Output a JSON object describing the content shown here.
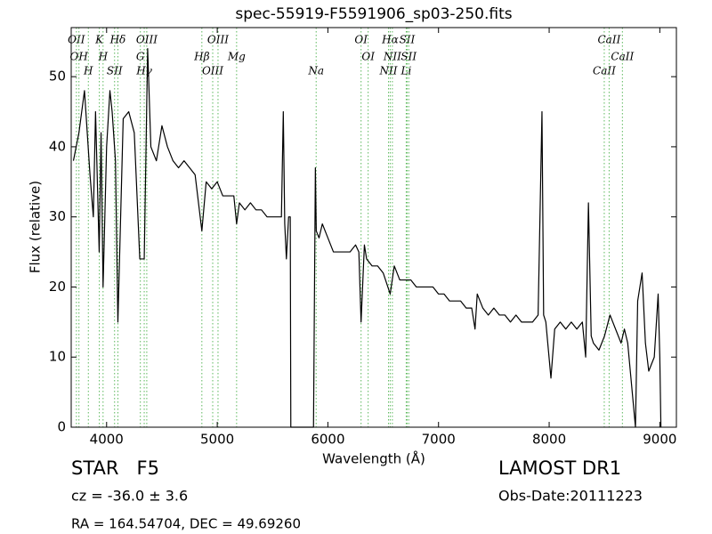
{
  "chart_data": {
    "type": "line",
    "title": "spec-55919-F5591906_sp03-250.fits",
    "x_label": "Wavelength (Å)",
    "y_label": "Flux (relative)",
    "xlim": [
      3680,
      9150
    ],
    "ylim": [
      0,
      57
    ],
    "xticks": [
      4000,
      5000,
      6000,
      7000,
      8000,
      9000
    ],
    "yticks": [
      0,
      10,
      20,
      30,
      40,
      50
    ],
    "x": [
      3700,
      3750,
      3800,
      3850,
      3880,
      3900,
      3933,
      3950,
      3968,
      4000,
      4030,
      4050,
      4080,
      4102,
      4150,
      4200,
      4250,
      4300,
      4340,
      4371,
      4400,
      4450,
      4500,
      4550,
      4600,
      4650,
      4700,
      4750,
      4800,
      4861,
      4900,
      4950,
      5000,
      5050,
      5100,
      5150,
      5175,
      5200,
      5250,
      5300,
      5350,
      5400,
      5450,
      5500,
      5550,
      5580,
      5597,
      5610,
      5625,
      5645,
      5660,
      5665,
      5870,
      5887,
      5895,
      5920,
      5950,
      6000,
      6050,
      6100,
      6150,
      6200,
      6250,
      6280,
      6300,
      6330,
      6350,
      6400,
      6450,
      6500,
      6563,
      6600,
      6650,
      6700,
      6750,
      6800,
      6850,
      6900,
      6950,
      7000,
      7050,
      7100,
      7150,
      7200,
      7250,
      7300,
      7330,
      7350,
      7400,
      7450,
      7500,
      7550,
      7600,
      7650,
      7700,
      7750,
      7800,
      7850,
      7900,
      7935,
      7950,
      7970,
      8016,
      8050,
      8100,
      8150,
      8200,
      8250,
      8300,
      8330,
      8355,
      8380,
      8400,
      8450,
      8500,
      8550,
      8600,
      8650,
      8680,
      8710,
      8780,
      8800,
      8840,
      8870,
      8900,
      8950,
      8985,
      9000,
      9010
    ],
    "series": [
      {
        "name": "Flux",
        "color": "#000000",
        "values": [
          38,
          42,
          48,
          36,
          30,
          45,
          25,
          42,
          20,
          40,
          48,
          45,
          38,
          15,
          44,
          45,
          42,
          24,
          24,
          54,
          40,
          38,
          43,
          40,
          38,
          37,
          38,
          37,
          36,
          28,
          35,
          34,
          35,
          33,
          33,
          33,
          29,
          32,
          31,
          32,
          31,
          31,
          30,
          30,
          30,
          30,
          45,
          29,
          24,
          30,
          30,
          0,
          0,
          37,
          28,
          27,
          29,
          27,
          25,
          25,
          25,
          25,
          26,
          25,
          15,
          26,
          24,
          23,
          23,
          22,
          19,
          23,
          21,
          21,
          21,
          20,
          20,
          20,
          20,
          19,
          19,
          18,
          18,
          18,
          17,
          17,
          14,
          19,
          17,
          16,
          17,
          16,
          16,
          15,
          16,
          15,
          15,
          15,
          16,
          45,
          16,
          15,
          7,
          14,
          15,
          14,
          15,
          14,
          15,
          10,
          32,
          13,
          12,
          11,
          13,
          16,
          14,
          12,
          14,
          12,
          0,
          18,
          22,
          12,
          8,
          10,
          19,
          10,
          0
        ]
      }
    ],
    "line_color": "#5cb85c",
    "spectral_lines": [
      {
        "label": "OII",
        "wavelength": 3727
      },
      {
        "label": "OH",
        "wavelength": 3750
      },
      {
        "label": "H",
        "wavelength": 3835
      },
      {
        "label": "K",
        "wavelength": 3934
      },
      {
        "label": "H",
        "wavelength": 3968
      },
      {
        "label": "SII",
        "wavelength": 4072
      },
      {
        "label": "Hδ",
        "wavelength": 4102
      },
      {
        "label": "G",
        "wavelength": 4305
      },
      {
        "label": "Hγ",
        "wavelength": 4340
      },
      {
        "label": "OIII",
        "wavelength": 4363
      },
      {
        "label": "Hβ",
        "wavelength": 4861
      },
      {
        "label": "OIII",
        "wavelength": 4959
      },
      {
        "label": "OIII",
        "wavelength": 5007
      },
      {
        "label": "Mg",
        "wavelength": 5175
      },
      {
        "label": "Na",
        "wavelength": 5894
      },
      {
        "label": "OI",
        "wavelength": 6300
      },
      {
        "label": "OI",
        "wavelength": 6364
      },
      {
        "label": "NII",
        "wavelength": 6548
      },
      {
        "label": "Hα",
        "wavelength": 6563
      },
      {
        "label": "NII",
        "wavelength": 6583
      },
      {
        "label": "Li",
        "wavelength": 6708
      },
      {
        "label": "SII",
        "wavelength": 6716
      },
      {
        "label": "SII",
        "wavelength": 6731
      },
      {
        "label": "CaII",
        "wavelength": 8498
      },
      {
        "label": "CaII",
        "wavelength": 8542
      },
      {
        "label": "CaII",
        "wavelength": 8662
      }
    ]
  },
  "info": {
    "object": "STAR   F5",
    "redshift": "cz = -36.0 ± 3.6",
    "coordinates": "RA = 164.54704, DEC = 49.69260",
    "survey": "LAMOST DR1",
    "obs_date": "Obs-Date:20111223"
  }
}
